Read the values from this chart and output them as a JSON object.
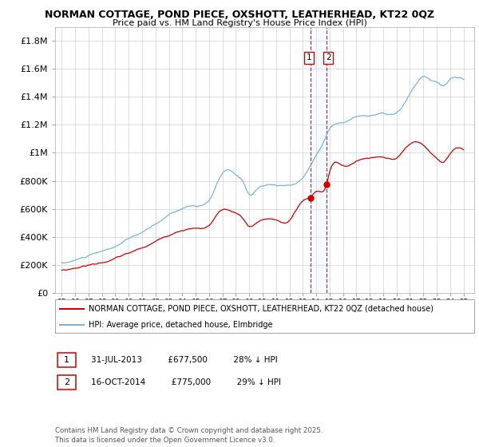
{
  "title_line1": "NORMAN COTTAGE, POND PIECE, OXSHOTT, LEATHERHEAD, KT22 0QZ",
  "title_line2": "Price paid vs. HM Land Registry's House Price Index (HPI)",
  "background_color": "#ffffff",
  "grid_color": "#d0d0d0",
  "hpi_color": "#7ab3d9",
  "price_color": "#cc0000",
  "vline_color": "#cc0000",
  "shade_color": "#ddeeff",
  "legend_entry1": "NORMAN COTTAGE, POND PIECE, OXSHOTT, LEATHERHEAD, KT22 0QZ (detached house)",
  "legend_entry2": "HPI: Average price, detached house, Elmbridge",
  "footnote_line1": "Contains HM Land Registry data © Crown copyright and database right 2025.",
  "footnote_line2": "This data is licensed under the Open Government Licence v3.0.",
  "sale1_x": 2013.58,
  "sale1_price": 677500,
  "sale2_x": 2014.79,
  "sale2_price": 775000,
  "xlim_start": 1994.5,
  "xlim_end": 2025.8,
  "ylim_max": 1900000,
  "yticks": [
    0,
    200000,
    400000,
    600000,
    800000,
    1000000,
    1200000,
    1400000,
    1600000,
    1800000
  ],
  "ytick_labels": [
    "£0",
    "£200K",
    "£400K",
    "£600K",
    "£800K",
    "£1M",
    "£1.2M",
    "£1.4M",
    "£1.6M",
    "£1.8M"
  ]
}
